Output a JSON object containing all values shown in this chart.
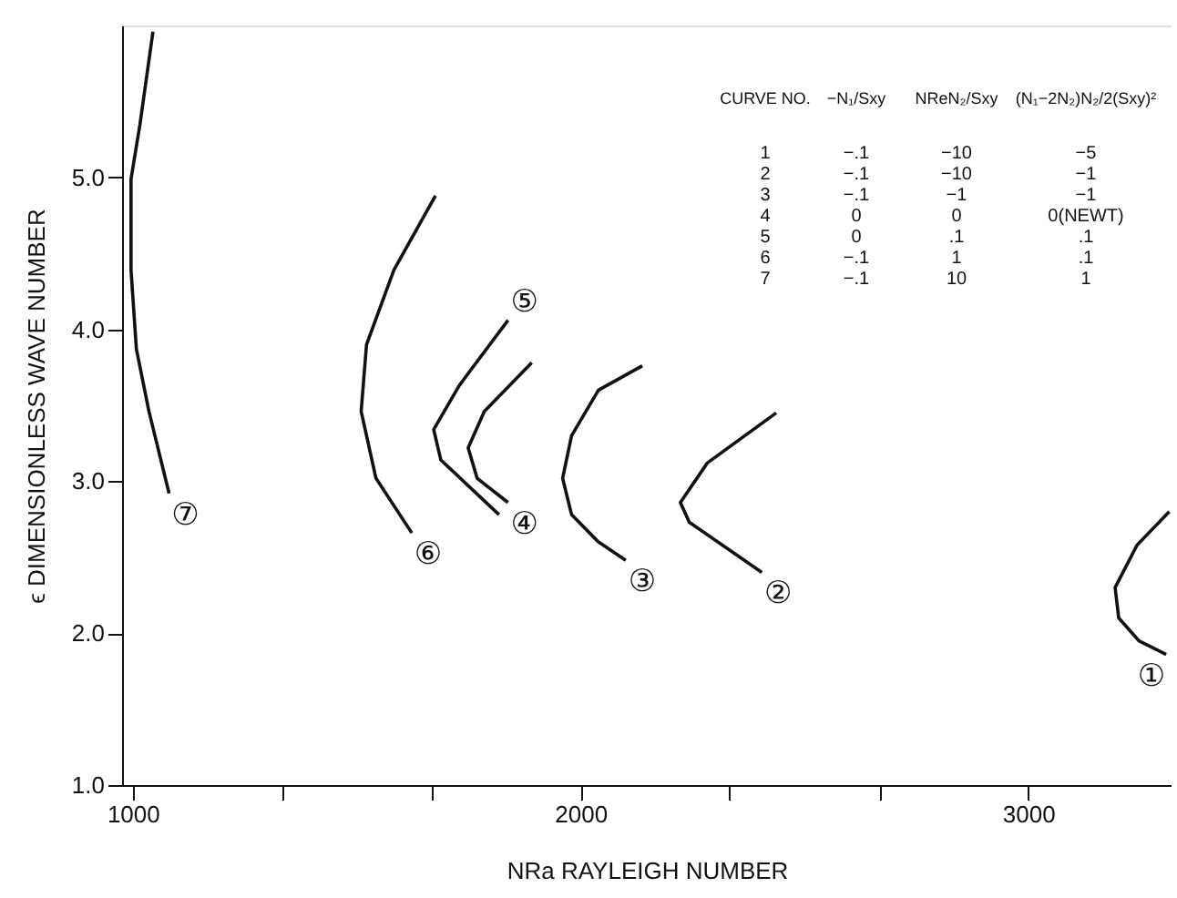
{
  "chart_data": {
    "type": "line",
    "xlabel": "NRa    RAYLEIGH NUMBER",
    "ylabel": "ϵ DIMENSIONLESS WAVE NUMBER",
    "xlim": [
      976,
      3320
    ],
    "ylim": [
      1.0,
      6.0
    ],
    "xticks": [
      1000,
      {
        "value": 1333,
        "label": null
      },
      {
        "value": 1667,
        "label": null
      },
      2000,
      {
        "value": 2333,
        "label": null
      },
      {
        "value": 2667,
        "label": null
      },
      3000
    ],
    "yticks": [
      {
        "value": 1,
        "label": "1.0"
      },
      {
        "value": 2,
        "label": "2.0"
      },
      {
        "value": 3,
        "label": "3.0"
      },
      {
        "value": 4,
        "label": "4.0"
      },
      {
        "value": 5,
        "label": "5.0"
      }
    ],
    "grid": false,
    "marker": "none",
    "line_style": "solid",
    "series": [
      {
        "color": "#111111",
        "x": [
          3315,
          3243,
          3194,
          3202,
          3247,
          3308
        ],
        "values": [
          2.8,
          2.58,
          2.3,
          2.1,
          1.95,
          1.86
        ]
      },
      {
        "color": "#111111",
        "x": [
          2437,
          2283,
          2223,
          2243,
          2405
        ],
        "values": [
          3.45,
          3.12,
          2.86,
          2.73,
          2.4
        ]
      },
      {
        "color": "#111111",
        "x": [
          2138,
          2040,
          1980,
          1960,
          1980,
          2040,
          2101
        ],
        "values": [
          3.76,
          3.6,
          3.3,
          3.02,
          2.78,
          2.6,
          2.48
        ]
      },
      {
        "color": "#111111",
        "x": [
          1891,
          1785,
          1749,
          1769,
          1838
        ],
        "values": [
          3.78,
          3.46,
          3.22,
          3.02,
          2.86
        ]
      },
      {
        "color": "#111111",
        "x": [
          1838,
          1729,
          1672,
          1688,
          1818
        ],
        "values": [
          4.06,
          3.63,
          3.34,
          3.14,
          2.78
        ]
      },
      {
        "color": "#111111",
        "x": [
          1676,
          1583,
          1522,
          1510,
          1543,
          1623
        ],
        "values": [
          4.88,
          4.39,
          3.9,
          3.46,
          3.02,
          2.66
        ]
      },
      {
        "color": "#111111",
        "x": [
          1045,
          1016,
          996,
          996,
          1008,
          1036,
          1081
        ],
        "values": [
          5.96,
          5.35,
          4.99,
          4.39,
          3.87,
          3.46,
          2.92
        ]
      }
    ],
    "annotations": [
      {
        "text": "①",
        "x": 3308,
        "y": 1.86
      },
      {
        "text": "②",
        "x": 2405,
        "y": 2.4
      },
      {
        "text": "③",
        "x": 2101,
        "y": 2.48
      },
      {
        "text": "④",
        "x": 1838,
        "y": 2.86
      },
      {
        "text": "⑤",
        "x": 1838,
        "y": 4.06
      },
      {
        "text": "⑥",
        "x": 1623,
        "y": 2.66
      },
      {
        "text": "⑦",
        "x": 1081,
        "y": 2.92
      },
      "CURVE NO.",
      "−N₁/Sxy",
      "NReN₂/Sxy",
      "(N₁−2N₂)N₂/2(Sxy)²",
      "1",
      "−.1",
      "−10",
      "−5",
      "2",
      "−.1",
      "−10",
      "−1",
      "3",
      "−.1",
      "−1",
      "−1",
      "4",
      "0",
      "0",
      "0(NEWT)",
      "5",
      "0",
      ".1",
      ".1",
      "6",
      "−.1",
      "1",
      ".1",
      "7",
      "−.1",
      "10",
      "1"
    ]
  }
}
